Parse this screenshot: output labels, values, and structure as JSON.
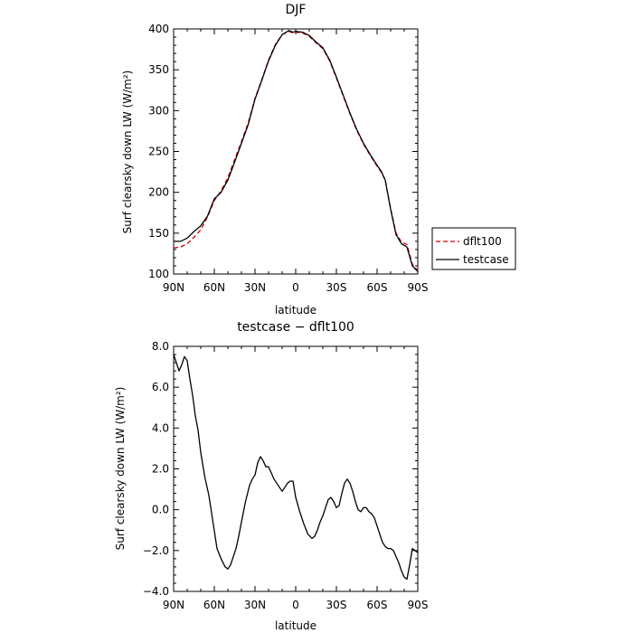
{
  "chart_data": [
    {
      "type": "line",
      "title": "DJF",
      "xlabel": "latitude",
      "ylabel": "Surf clearsky down LW (W/m²)",
      "xlim": [
        -90,
        90
      ],
      "ylim": [
        100,
        400
      ],
      "x_ticks": [
        {
          "value": -90,
          "label": "90N"
        },
        {
          "value": -60,
          "label": "60N"
        },
        {
          "value": -30,
          "label": "30N"
        },
        {
          "value": 0,
          "label": "0"
        },
        {
          "value": 30,
          "label": "30S"
        },
        {
          "value": 60,
          "label": "60S"
        },
        {
          "value": 90,
          "label": "90S"
        }
      ],
      "y_ticks": [
        {
          "value": 100,
          "label": "100"
        },
        {
          "value": 150,
          "label": "150"
        },
        {
          "value": 200,
          "label": "200"
        },
        {
          "value": 250,
          "label": "250"
        },
        {
          "value": 300,
          "label": "300"
        },
        {
          "value": 350,
          "label": "350"
        },
        {
          "value": 400,
          "label": "400"
        }
      ],
      "legend_position": "right",
      "series": [
        {
          "name": "dflt100",
          "color": "#cc0000",
          "dash": "dashed",
          "x": [
            -90,
            -85,
            -80,
            -75,
            -70,
            -65,
            -60,
            -55,
            -50,
            -45,
            -40,
            -35,
            -30,
            -25,
            -20,
            -15,
            -10,
            -5,
            -2,
            0,
            5,
            10,
            15,
            20,
            25,
            30,
            35,
            40,
            45,
            50,
            55,
            60,
            63,
            66,
            70,
            74,
            78,
            82,
            86,
            90
          ],
          "y": [
            132,
            133,
            137,
            145,
            154,
            170,
            190,
            202,
            218,
            240,
            262,
            285,
            315,
            338,
            362,
            381,
            393,
            397,
            395,
            396,
            395,
            391,
            383,
            376,
            361,
            340,
            318,
            296,
            276,
            259,
            245,
            232,
            225,
            215,
            180,
            150,
            139,
            136,
            112,
            104
          ]
        },
        {
          "name": "testcase",
          "color": "#000000",
          "dash": "solid",
          "x": [
            -90,
            -85,
            -80,
            -75,
            -70,
            -65,
            -60,
            -55,
            -50,
            -45,
            -40,
            -35,
            -30,
            -25,
            -20,
            -15,
            -10,
            -5,
            -2,
            0,
            5,
            10,
            15,
            20,
            25,
            30,
            35,
            40,
            45,
            50,
            55,
            60,
            63,
            66,
            70,
            74,
            78,
            82,
            86,
            90
          ],
          "y": [
            140,
            140,
            144,
            152,
            159,
            171,
            192,
            200,
            215,
            237,
            260,
            283,
            314,
            337,
            361,
            380,
            393,
            398,
            396,
            397,
            396,
            392,
            384,
            377,
            362,
            341,
            319,
            297,
            277,
            260,
            246,
            233,
            226,
            215,
            179,
            148,
            137,
            133,
            110,
            103
          ]
        }
      ]
    },
    {
      "type": "line",
      "title": "testcase − dflt100",
      "xlabel": "latitude",
      "ylabel": "Surf clearsky down LW (W/m²)",
      "xlim": [
        -90,
        90
      ],
      "ylim": [
        -4,
        8
      ],
      "x_ticks": [
        {
          "value": -90,
          "label": "90N"
        },
        {
          "value": -60,
          "label": "60N"
        },
        {
          "value": -30,
          "label": "30N"
        },
        {
          "value": 0,
          "label": "0"
        },
        {
          "value": 30,
          "label": "30S"
        },
        {
          "value": 60,
          "label": "60S"
        },
        {
          "value": 90,
          "label": "90S"
        }
      ],
      "y_ticks": [
        {
          "value": -4,
          "label": "−4.0"
        },
        {
          "value": -2,
          "label": "−2.0"
        },
        {
          "value": 0,
          "label": "0.0"
        },
        {
          "value": 2,
          "label": "2.0"
        },
        {
          "value": 4,
          "label": "4.0"
        },
        {
          "value": 6,
          "label": "6.0"
        },
        {
          "value": 8,
          "label": "8.0"
        }
      ],
      "series": [
        {
          "name": "",
          "color": "#000000",
          "dash": "solid",
          "x": [
            -90,
            -88,
            -86,
            -84,
            -82,
            -80,
            -78,
            -76,
            -74,
            -72,
            -70,
            -67,
            -64,
            -61,
            -58,
            -55,
            -52,
            -50,
            -48,
            -46,
            -44,
            -42,
            -40,
            -37,
            -34,
            -32,
            -30,
            -28,
            -26,
            -24,
            -22,
            -20,
            -18,
            -16,
            -14,
            -12,
            -10,
            -8,
            -6,
            -4,
            -2,
            0,
            3,
            6,
            9,
            12,
            14,
            16,
            18,
            20,
            22,
            24,
            26,
            28,
            30,
            32,
            34,
            36,
            38,
            40,
            42,
            44,
            46,
            48,
            50,
            52,
            54,
            56,
            58,
            60,
            62,
            64,
            66,
            68,
            70,
            72,
            74,
            76,
            78,
            80,
            82,
            84,
            86,
            88,
            90
          ],
          "y": [
            7.6,
            7.2,
            6.8,
            7.1,
            7.5,
            7.3,
            6.4,
            5.6,
            4.6,
            3.9,
            2.8,
            1.6,
            0.7,
            -0.6,
            -1.9,
            -2.4,
            -2.8,
            -2.9,
            -2.7,
            -2.3,
            -1.9,
            -1.3,
            -0.6,
            0.4,
            1.2,
            1.5,
            1.7,
            2.3,
            2.6,
            2.4,
            2.1,
            2.1,
            1.8,
            1.5,
            1.3,
            1.1,
            0.9,
            1.1,
            1.3,
            1.4,
            1.4,
            0.6,
            -0.1,
            -0.7,
            -1.2,
            -1.4,
            -1.3,
            -1.0,
            -0.6,
            -0.3,
            0.1,
            0.5,
            0.6,
            0.4,
            0.1,
            0.2,
            0.8,
            1.3,
            1.5,
            1.3,
            0.9,
            0.4,
            -0.0,
            -0.1,
            0.1,
            0.1,
            -0.1,
            -0.2,
            -0.4,
            -0.8,
            -1.2,
            -1.6,
            -1.8,
            -1.9,
            -1.9,
            -2.0,
            -2.3,
            -2.6,
            -3.0,
            -3.3,
            -3.4,
            -2.7,
            -1.9,
            -2.0,
            -2.1
          ]
        }
      ]
    }
  ]
}
